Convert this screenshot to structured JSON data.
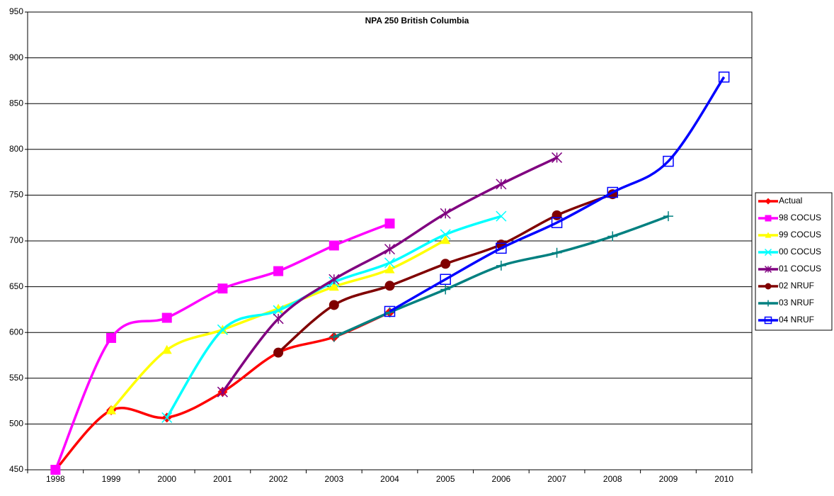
{
  "chart_data": {
    "type": "line",
    "title": "NPA 250 British Columbia",
    "categories": [
      "1998",
      "1999",
      "2000",
      "2001",
      "2002",
      "2003",
      "2004",
      "2005",
      "2006",
      "2007",
      "2008",
      "2009",
      "2010"
    ],
    "ylim": [
      450,
      950
    ],
    "yticks": [
      450,
      500,
      550,
      600,
      650,
      700,
      750,
      800,
      850,
      900,
      950
    ],
    "grid": true,
    "smooth": true,
    "legend": "right",
    "series": [
      {
        "name": "Actual",
        "color": "#ff0000",
        "marker": "diamond",
        "values": [
          450,
          515,
          507,
          535,
          578,
          595,
          622,
          null,
          null,
          null,
          null,
          null,
          null
        ]
      },
      {
        "name": "98 COCUS",
        "color": "#ff00ff",
        "marker": "square",
        "values": [
          450,
          594,
          616,
          648,
          667,
          695,
          719,
          null,
          null,
          null,
          null,
          null,
          null
        ]
      },
      {
        "name": "99 COCUS",
        "color": "#ffff00",
        "marker": "triangle",
        "values": [
          null,
          515,
          581,
          603,
          626,
          650,
          669,
          701,
          null,
          null,
          null,
          null,
          null
        ]
      },
      {
        "name": "00 COCUS",
        "color": "#00ffff",
        "marker": "x",
        "values": [
          null,
          null,
          507,
          603,
          624,
          655,
          676,
          707,
          727,
          null,
          null,
          null,
          null
        ]
      },
      {
        "name": "01 COCUS",
        "color": "#800080",
        "marker": "asterisk",
        "values": [
          null,
          null,
          null,
          535,
          615,
          658,
          691,
          730,
          762,
          791,
          null,
          null,
          null
        ]
      },
      {
        "name": "02 NRUF",
        "color": "#800000",
        "marker": "circle",
        "values": [
          null,
          null,
          null,
          null,
          578,
          630,
          651,
          675,
          696,
          728,
          751,
          null,
          null
        ]
      },
      {
        "name": "03 NRUF",
        "color": "#008080",
        "marker": "plus",
        "values": [
          null,
          null,
          null,
          null,
          null,
          595,
          622,
          647,
          673,
          687,
          705,
          727,
          null
        ]
      },
      {
        "name": "04 NRUF",
        "color": "#0000ff",
        "marker": "open-square",
        "values": [
          null,
          null,
          null,
          null,
          null,
          null,
          623,
          658,
          692,
          720,
          753,
          787,
          879
        ]
      }
    ]
  }
}
